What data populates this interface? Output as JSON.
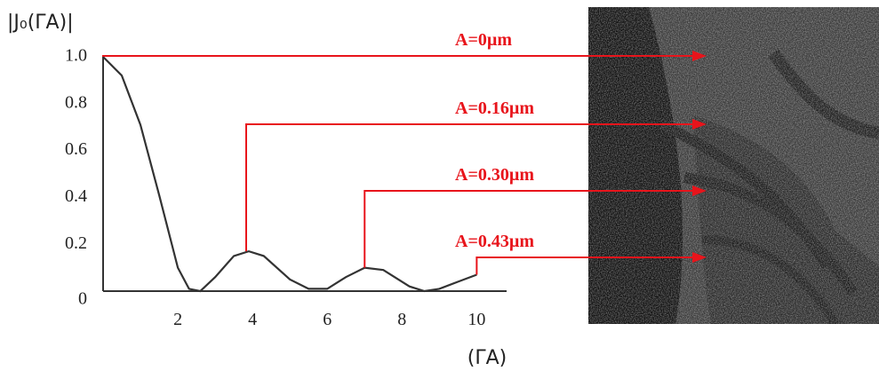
{
  "chart_data": {
    "type": "line",
    "y_label": "|J₀(ΓA)|",
    "x_label": "(ΓA)",
    "x": [
      0,
      0.5,
      1,
      1.5,
      2,
      2.3,
      2.6,
      3,
      3.5,
      3.9,
      4.3,
      5,
      5.5,
      6,
      6.5,
      7,
      7.5,
      8.2,
      8.6,
      9,
      9.5,
      10
    ],
    "values": [
      1,
      0.92,
      0.71,
      0.41,
      0.1,
      0.01,
      0,
      0.06,
      0.15,
      0.17,
      0.15,
      0.05,
      0.01,
      0.01,
      0.06,
      0.1,
      0.09,
      0.02,
      0,
      0.01,
      0.04,
      0.07
    ],
    "color": "#333333",
    "xlim": [
      0,
      10.8
    ],
    "ylim": [
      0,
      1
    ],
    "xticks": [
      2,
      4,
      6,
      8,
      10
    ],
    "yticks": [
      0,
      0.2,
      0.4,
      0.6,
      0.8,
      {
        "value": 1,
        "label": "1.0"
      }
    ],
    "annotations": [
      {
        "text": "A=0µm",
        "x": 0,
        "y": 1
      },
      {
        "text": "A=0.16µm",
        "x": 3.83,
        "y": 0.17
      },
      {
        "text": "A=0.30µm",
        "x": 7,
        "y": 0.1
      },
      {
        "text": "A=0.43µm",
        "x": 10,
        "y": 0.07
      }
    ],
    "annotation_color": "#e8141b"
  }
}
